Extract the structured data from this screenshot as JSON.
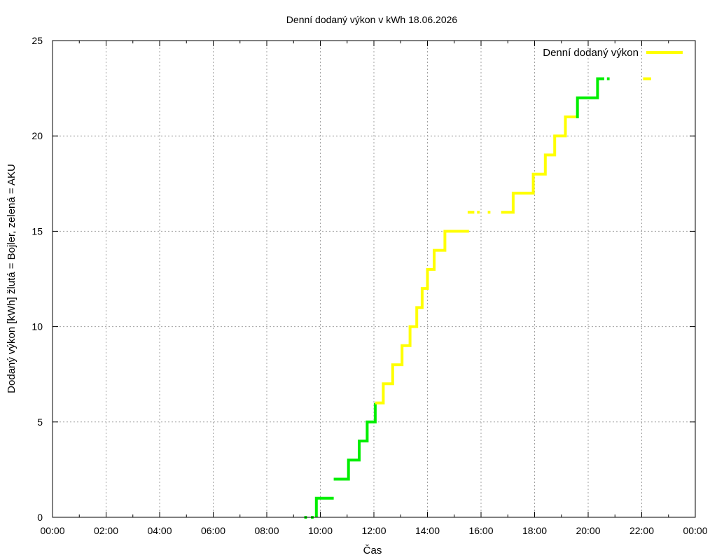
{
  "chart_data": {
    "type": "line",
    "title": "Denní dodaný výkon v kWh 18.06.2026",
    "xlabel": "Čas",
    "ylabel": "Dodaný výkon [kWh]  žlutá = Bojler, zelená = AKU",
    "xlim": [
      0,
      24
    ],
    "ylim": [
      0,
      25
    ],
    "x_ticks": [
      "00:00",
      "02:00",
      "04:00",
      "06:00",
      "08:00",
      "10:00",
      "12:00",
      "14:00",
      "16:00",
      "18:00",
      "20:00",
      "22:00",
      "00:00"
    ],
    "y_ticks": [
      0,
      5,
      10,
      15,
      20,
      25
    ],
    "grid": true,
    "legend": {
      "label": "Denní dodaný výkon",
      "placement": "top-right",
      "color": "#ffff00"
    },
    "colors": {
      "Bojler": "#ffff00",
      "AKU": "#00ee00"
    },
    "segments": [
      {
        "color": "#00ee00",
        "points": [
          [
            9.4,
            0
          ],
          [
            9.5,
            0
          ]
        ]
      },
      {
        "color": "#00ee00",
        "points": [
          [
            9.65,
            0
          ],
          [
            9.75,
            0
          ]
        ]
      },
      {
        "color": "#00ee00",
        "points": [
          [
            9.85,
            0
          ],
          [
            9.85,
            1
          ],
          [
            10.5,
            1
          ]
        ]
      },
      {
        "color": "#00ee00",
        "points": [
          [
            10.5,
            2
          ],
          [
            11.05,
            2
          ],
          [
            11.05,
            3
          ],
          [
            11.45,
            3
          ],
          [
            11.45,
            4
          ],
          [
            11.75,
            4
          ],
          [
            11.75,
            5
          ],
          [
            12.05,
            5
          ],
          [
            12.05,
            6
          ]
        ]
      },
      {
        "color": "#ffff00",
        "points": [
          [
            12.05,
            6
          ],
          [
            12.35,
            6
          ],
          [
            12.35,
            7
          ],
          [
            12.7,
            7
          ],
          [
            12.7,
            8
          ],
          [
            13.05,
            8
          ],
          [
            13.05,
            9
          ],
          [
            13.35,
            9
          ],
          [
            13.35,
            10
          ],
          [
            13.6,
            10
          ],
          [
            13.6,
            11
          ],
          [
            13.8,
            11
          ],
          [
            13.8,
            12
          ],
          [
            14.0,
            12
          ],
          [
            14.0,
            13
          ],
          [
            14.25,
            13
          ],
          [
            14.25,
            14
          ],
          [
            14.65,
            14
          ],
          [
            14.65,
            15
          ],
          [
            15.55,
            15
          ]
        ]
      },
      {
        "color": "#ffff00",
        "points": [
          [
            15.5,
            16
          ],
          [
            15.75,
            16
          ]
        ]
      },
      {
        "color": "#ffff00",
        "points": [
          [
            15.85,
            16
          ],
          [
            15.95,
            16
          ]
        ]
      },
      {
        "color": "#ffff00",
        "points": [
          [
            16.25,
            16
          ],
          [
            16.35,
            16
          ]
        ]
      },
      {
        "color": "#ffff00",
        "points": [
          [
            16.75,
            16
          ],
          [
            17.2,
            16
          ],
          [
            17.2,
            17
          ],
          [
            17.95,
            17
          ],
          [
            17.95,
            18
          ],
          [
            18.4,
            18
          ],
          [
            18.4,
            19
          ],
          [
            18.75,
            19
          ],
          [
            18.75,
            20
          ],
          [
            19.15,
            20
          ],
          [
            19.15,
            21
          ],
          [
            19.6,
            21
          ]
        ]
      },
      {
        "color": "#00ee00",
        "points": [
          [
            19.55,
            21
          ],
          [
            19.6,
            21
          ],
          [
            19.6,
            22
          ],
          [
            20.35,
            22
          ],
          [
            20.35,
            23
          ],
          [
            20.6,
            23
          ]
        ]
      },
      {
        "color": "#00ee00",
        "points": [
          [
            20.7,
            23
          ],
          [
            20.8,
            23
          ]
        ]
      },
      {
        "color": "#ffff00",
        "points": [
          [
            22.05,
            23
          ],
          [
            22.35,
            23
          ]
        ]
      }
    ]
  }
}
